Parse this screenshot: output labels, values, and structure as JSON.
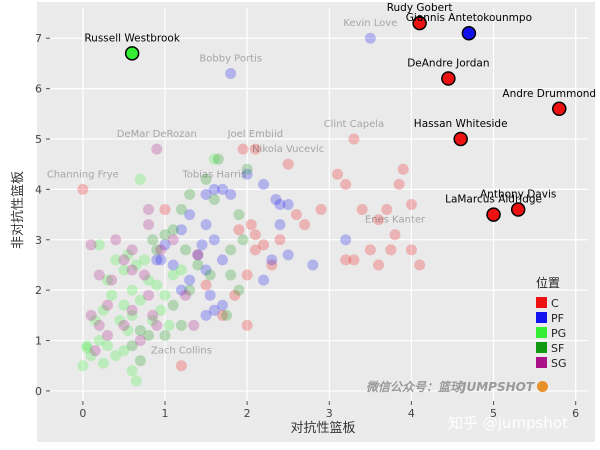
{
  "chart_data": {
    "type": "scatter",
    "xlabel": "对抗性篮板",
    "ylabel": "非对抗性篮板",
    "xlim": [
      -0.4,
      6.15
    ],
    "ylim": [
      -0.2,
      7.6
    ],
    "xticks": [
      0,
      1,
      2,
      3,
      4,
      5,
      6
    ],
    "yticks": [
      0,
      1,
      2,
      3,
      4,
      5,
      6,
      7
    ],
    "grid": true,
    "legend": {
      "title": "位置",
      "placement": "right",
      "items": [
        {
          "label": "C",
          "color": "#ee1111"
        },
        {
          "label": "PF",
          "color": "#1111ee"
        },
        {
          "label": "PG",
          "color": "#33ee33"
        },
        {
          "label": "SF",
          "color": "#119911"
        },
        {
          "label": "SG",
          "color": "#aa1188"
        }
      ]
    },
    "highlighted": [
      {
        "name": "Rudy Gobert",
        "x": 4.1,
        "y": 7.3,
        "pos": "C"
      },
      {
        "name": "Giannis Antetokounmpo",
        "x": 4.7,
        "y": 7.1,
        "pos": "PF"
      },
      {
        "name": "Russell Westbrook",
        "x": 0.6,
        "y": 6.7,
        "pos": "PG"
      },
      {
        "name": "DeAndre Jordan",
        "x": 4.45,
        "y": 6.2,
        "pos": "C"
      },
      {
        "name": "Andre Drummond",
        "x": 5.8,
        "y": 5.6,
        "pos": "C"
      },
      {
        "name": "Hassan Whiteside",
        "x": 4.6,
        "y": 5.0,
        "pos": "C"
      },
      {
        "name": "Anthony Davis",
        "x": 5.3,
        "y": 3.6,
        "pos": "C"
      },
      {
        "name": "LaMarcus Aldridge",
        "x": 5.0,
        "y": 3.5,
        "pos": "C"
      }
    ],
    "labeled_faded": [
      {
        "name": "Kevin Love",
        "x": 3.5,
        "y": 7.0,
        "pos": "PF"
      },
      {
        "name": "Bobby Portis",
        "x": 1.8,
        "y": 6.3,
        "pos": "PF"
      },
      {
        "name": "DeMar DeRozan",
        "x": 0.9,
        "y": 4.8,
        "pos": "SG"
      },
      {
        "name": "Joel Embiid",
        "x": 2.1,
        "y": 4.8,
        "pos": "C"
      },
      {
        "name": "Clint Capela",
        "x": 3.3,
        "y": 5.0,
        "pos": "C"
      },
      {
        "name": "Nikola Vucevic",
        "x": 2.5,
        "y": 4.5,
        "pos": "C"
      },
      {
        "name": "Tobias Harris",
        "x": 1.6,
        "y": 4.0,
        "pos": "PF"
      },
      {
        "name": "Channing Frye",
        "x": 0.0,
        "y": 4.0,
        "pos": "C"
      },
      {
        "name": "Enes Kanter",
        "x": 3.8,
        "y": 3.1,
        "pos": "C"
      },
      {
        "name": "Zach Collins",
        "x": 1.2,
        "y": 0.5,
        "pos": "C"
      }
    ],
    "background_points": {
      "C": [
        [
          1.95,
          4.8
        ],
        [
          2.05,
          3.3
        ],
        [
          2.1,
          3.1
        ],
        [
          2.2,
          2.9
        ],
        [
          2.3,
          2.5
        ],
        [
          2.4,
          3.0
        ],
        [
          2.6,
          3.5
        ],
        [
          2.7,
          3.3
        ],
        [
          2.9,
          3.6
        ],
        [
          3.1,
          4.3
        ],
        [
          3.2,
          4.1
        ],
        [
          3.4,
          3.6
        ],
        [
          3.6,
          3.4
        ],
        [
          3.7,
          3.6
        ],
        [
          3.85,
          4.1
        ],
        [
          3.9,
          4.4
        ],
        [
          4.0,
          3.7
        ],
        [
          3.75,
          2.8
        ],
        [
          3.5,
          2.8
        ],
        [
          3.3,
          2.6
        ],
        [
          3.2,
          2.6
        ],
        [
          3.6,
          2.5
        ],
        [
          4.0,
          2.8
        ],
        [
          4.1,
          2.5
        ],
        [
          1.9,
          3.2
        ],
        [
          2.0,
          2.3
        ],
        [
          2.1,
          2.8
        ],
        [
          1.85,
          1.9
        ],
        [
          2.0,
          1.3
        ],
        [
          1.7,
          1.5
        ],
        [
          1.5,
          2.1
        ],
        [
          1.4,
          2.7
        ],
        [
          1.0,
          3.6
        ]
      ],
      "PF": [
        [
          1.7,
          4.0
        ],
        [
          2.2,
          4.1
        ],
        [
          2.0,
          4.3
        ],
        [
          2.35,
          3.8
        ],
        [
          2.4,
          3.7
        ],
        [
          2.5,
          3.7
        ],
        [
          2.8,
          2.5
        ],
        [
          3.2,
          3.0
        ],
        [
          2.5,
          2.7
        ],
        [
          2.3,
          2.6
        ],
        [
          2.2,
          2.2
        ],
        [
          2.4,
          3.3
        ],
        [
          1.8,
          3.9
        ],
        [
          1.5,
          3.9
        ],
        [
          1.3,
          3.5
        ],
        [
          1.2,
          3.2
        ],
        [
          1.5,
          3.3
        ],
        [
          1.6,
          3.0
        ],
        [
          1.4,
          2.7
        ],
        [
          1.7,
          2.6
        ],
        [
          1.5,
          2.4
        ],
        [
          1.3,
          2.2
        ],
        [
          1.2,
          2.0
        ],
        [
          1.55,
          1.9
        ],
        [
          1.7,
          1.7
        ],
        [
          1.5,
          1.5
        ],
        [
          1.6,
          1.6
        ],
        [
          1.1,
          2.5
        ],
        [
          0.95,
          2.6
        ],
        [
          1.0,
          2.9
        ],
        [
          0.9,
          2.6
        ],
        [
          1.45,
          2.9
        ]
      ],
      "PG": [
        [
          1.6,
          4.6
        ],
        [
          0.7,
          4.2
        ],
        [
          0.2,
          2.9
        ],
        [
          0.4,
          2.6
        ],
        [
          0.3,
          2.2
        ],
        [
          0.5,
          2.4
        ],
        [
          0.55,
          2.7
        ],
        [
          0.65,
          2.5
        ],
        [
          0.75,
          2.6
        ],
        [
          0.8,
          2.2
        ],
        [
          0.6,
          2.0
        ],
        [
          0.7,
          1.8
        ],
        [
          0.5,
          1.7
        ],
        [
          0.35,
          1.9
        ],
        [
          0.25,
          1.6
        ],
        [
          0.45,
          1.4
        ],
        [
          0.55,
          1.2
        ],
        [
          0.15,
          1.4
        ],
        [
          0.2,
          1.0
        ],
        [
          0.05,
          0.9
        ],
        [
          0.0,
          0.5
        ],
        [
          0.1,
          0.7
        ],
        [
          0.3,
          0.9
        ],
        [
          0.4,
          0.7
        ],
        [
          0.6,
          0.4
        ],
        [
          0.65,
          0.2
        ],
        [
          0.9,
          2.1
        ],
        [
          1.0,
          1.9
        ],
        [
          1.1,
          2.3
        ],
        [
          1.2,
          2.4
        ],
        [
          0.95,
          1.6
        ],
        [
          1.05,
          1.3
        ],
        [
          0.85,
          1.4
        ],
        [
          0.6,
          1.5
        ],
        [
          0.5,
          0.8
        ],
        [
          0.25,
          0.55
        ],
        [
          0.05,
          0.85
        ]
      ],
      "SF": [
        [
          1.65,
          4.6
        ],
        [
          2.0,
          4.4
        ],
        [
          1.9,
          3.5
        ],
        [
          1.95,
          3.0
        ],
        [
          1.8,
          2.8
        ],
        [
          1.8,
          2.3
        ],
        [
          1.9,
          2.0
        ],
        [
          1.6,
          3.8
        ],
        [
          1.5,
          4.2
        ],
        [
          1.3,
          3.9
        ],
        [
          1.2,
          3.6
        ],
        [
          1.1,
          3.2
        ],
        [
          1.0,
          3.1
        ],
        [
          0.9,
          2.8
        ],
        [
          0.85,
          3.0
        ],
        [
          1.25,
          2.8
        ],
        [
          1.4,
          2.5
        ],
        [
          1.1,
          1.7
        ],
        [
          1.2,
          1.3
        ],
        [
          1.0,
          1.1
        ],
        [
          0.8,
          1.1
        ],
        [
          0.7,
          1.2
        ],
        [
          0.6,
          0.9
        ],
        [
          0.7,
          0.6
        ],
        [
          1.75,
          1.5
        ],
        [
          1.3,
          2.0
        ],
        [
          1.55,
          2.3
        ]
      ],
      "SG": [
        [
          0.8,
          3.6
        ],
        [
          0.8,
          3.3
        ],
        [
          0.4,
          3.0
        ],
        [
          0.5,
          2.6
        ],
        [
          0.6,
          2.8
        ],
        [
          0.75,
          2.3
        ],
        [
          0.6,
          2.4
        ],
        [
          0.1,
          2.9
        ],
        [
          0.2,
          2.3
        ],
        [
          0.35,
          2.2
        ],
        [
          0.3,
          1.7
        ],
        [
          0.2,
          1.3
        ],
        [
          0.15,
          0.8
        ],
        [
          0.6,
          1.6
        ],
        [
          0.8,
          1.9
        ],
        [
          0.85,
          1.5
        ],
        [
          0.5,
          1.3
        ],
        [
          0.7,
          1.0
        ],
        [
          0.9,
          1.3
        ],
        [
          0.1,
          1.5
        ],
        [
          0.3,
          1.1
        ],
        [
          0.95,
          2.8
        ],
        [
          1.1,
          3.0
        ],
        [
          1.25,
          1.9
        ],
        [
          1.35,
          1.3
        ]
      ]
    }
  },
  "watermark_text": "微信公众号：篮球JUMPSHOT",
  "footer_text": "知乎 @jumpshot"
}
